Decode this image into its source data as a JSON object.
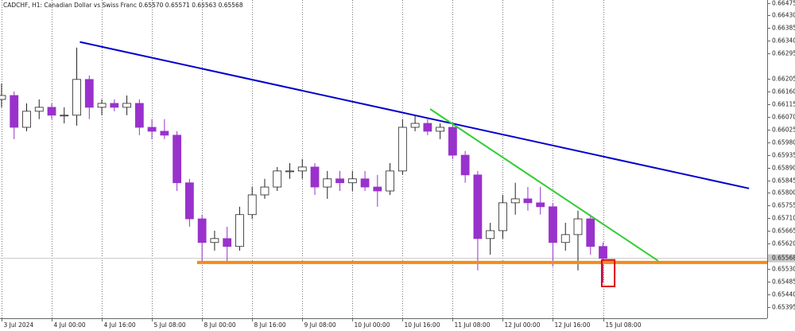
{
  "chart_data": {
    "type": "candlestick",
    "title": "CADCHF, H1:  Canadian Dollar vs Swiss Franc  0.65570 0.65571 0.65563 0.65568",
    "x": [
      0,
      4,
      8,
      12,
      16,
      20,
      24,
      28,
      32,
      36,
      40,
      44,
      48,
      52,
      56,
      60,
      64,
      68,
      72,
      76,
      80,
      84,
      88,
      92,
      96,
      100,
      104,
      108,
      112,
      116,
      120,
      124,
      128,
      132,
      136,
      140,
      144,
      148,
      152,
      156,
      160,
      164,
      168,
      172,
      176,
      180,
      184,
      188,
      192
    ],
    "open": [
      0.66132,
      0.66146,
      0.66033,
      0.6609,
      0.66104,
      0.66076,
      0.66076,
      0.66203,
      0.66104,
      0.66118,
      0.66104,
      0.66118,
      0.66033,
      0.66019,
      0.66005,
      0.65836,
      0.65708,
      0.65624,
      0.65638,
      0.6561,
      0.65723,
      0.65793,
      0.65821,
      0.65878,
      0.65878,
      0.65892,
      0.65821,
      0.6585,
      0.65836,
      0.6585,
      0.65821,
      0.65807,
      0.65878,
      0.66033,
      0.66047,
      0.66019,
      0.66033,
      0.65934,
      0.65864,
      0.65638,
      0.65666,
      0.65765,
      0.65779,
      0.65765,
      0.65751,
      0.65624,
      0.65652,
      0.65708,
      0.6561
    ],
    "high": [
      0.66189,
      0.6616,
      0.66118,
      0.66132,
      0.66118,
      0.66104,
      0.66316,
      0.66217,
      0.66132,
      0.66132,
      0.66146,
      0.66132,
      0.66062,
      0.66062,
      0.66019,
      0.6585,
      0.65723,
      0.65666,
      0.6568,
      0.65751,
      0.65821,
      0.6585,
      0.65892,
      0.65906,
      0.6592,
      0.65906,
      0.65878,
      0.65878,
      0.65878,
      0.65878,
      0.65864,
      0.65906,
      0.66062,
      0.66076,
      0.66062,
      0.66047,
      0.66047,
      0.65949,
      0.65878,
      0.65694,
      0.65793,
      0.65836,
      0.65821,
      0.65821,
      0.65765,
      0.65694,
      0.65737,
      0.65723,
      0.65624
    ],
    "low": [
      0.66104,
      0.65991,
      0.66019,
      0.66062,
      0.66062,
      0.66047,
      0.66039,
      0.66062,
      0.66076,
      0.6609,
      0.66076,
      0.66005,
      0.65991,
      0.65991,
      0.65807,
      0.6568,
      0.65553,
      0.65595,
      0.65553,
      0.65595,
      0.65708,
      0.65779,
      0.65807,
      0.6585,
      0.6585,
      0.65793,
      0.65779,
      0.65807,
      0.65807,
      0.65807,
      0.65751,
      0.65793,
      0.65864,
      0.66019,
      0.66005,
      0.65991,
      0.6592,
      0.65836,
      0.65525,
      0.65581,
      0.65638,
      0.65723,
      0.65737,
      0.65723,
      0.65539,
      0.65595,
      0.65525,
      0.65581,
      0.65482
    ],
    "close": [
      0.66146,
      0.66033,
      0.6609,
      0.66104,
      0.66076,
      0.66076,
      0.66203,
      0.66104,
      0.66118,
      0.66104,
      0.66118,
      0.66033,
      0.66019,
      0.66005,
      0.65836,
      0.65708,
      0.65624,
      0.65638,
      0.6561,
      0.65723,
      0.65793,
      0.65821,
      0.65878,
      0.65878,
      0.65892,
      0.65821,
      0.6585,
      0.65836,
      0.6585,
      0.65821,
      0.65807,
      0.65878,
      0.66033,
      0.66047,
      0.66019,
      0.66033,
      0.65934,
      0.65864,
      0.65638,
      0.65666,
      0.65765,
      0.65779,
      0.65765,
      0.65751,
      0.65624,
      0.65652,
      0.65708,
      0.6561,
      0.65568
    ],
    "up_color": "#ffffff",
    "down_color": "#9932cc",
    "edge_color": "#222222",
    "xlim": [
      -0.5,
      244.4
    ],
    "xticks": [
      {
        "value": 0,
        "label": "3 Jul 2024"
      },
      {
        "value": 16,
        "label": "4 Jul 00:00"
      },
      {
        "value": 32,
        "label": "4 Jul 16:00"
      },
      {
        "value": 48,
        "label": "5 Jul 08:00"
      },
      {
        "value": 64,
        "label": "8 Jul 00:00"
      },
      {
        "value": 80,
        "label": "8 Jul 16:00"
      },
      {
        "value": 96,
        "label": "9 Jul 08:00"
      },
      {
        "value": 112,
        "label": "10 Jul 00:00"
      },
      {
        "value": 128,
        "label": "10 Jul 16:00"
      },
      {
        "value": 144,
        "label": "11 Jul 08:00"
      },
      {
        "value": 160,
        "label": "12 Jul 00:00"
      },
      {
        "value": 176,
        "label": "12 Jul 16:00"
      },
      {
        "value": 192,
        "label": "15 Jul 08:00"
      }
    ],
    "ylim": [
      0.65355,
      0.66485
    ],
    "yticks": [
      0.66475,
      {
        "value": 0.6643,
        "label": "0.66430"
      },
      0.66385,
      {
        "value": 0.6634,
        "label": "0.66340"
      },
      0.66295,
      0.66205,
      {
        "value": 0.6616,
        "label": "0.66160"
      },
      0.66115,
      {
        "value": 0.6607,
        "label": "0.66070"
      },
      0.66025,
      {
        "value": 0.6598,
        "label": "0.65980"
      },
      0.65935,
      {
        "value": 0.6589,
        "label": "0.65890"
      },
      0.65845,
      {
        "value": 0.658,
        "label": "0.65800"
      },
      0.65755,
      {
        "value": 0.6571,
        "label": "0.65710"
      },
      0.65665,
      {
        "value": 0.6562,
        "label": "0.65620"
      },
      {
        "value": 0.6553,
        "label": "0.65530"
      },
      0.65485,
      {
        "value": 0.6544,
        "label": "0.65440"
      },
      0.65395
    ],
    "price_label": 0.65568,
    "lines": [
      {
        "color": "#0000cc",
        "x": [
          25,
          238.6
        ],
        "y": [
          0.66336,
          0.65816
        ]
      },
      {
        "color": "#33cc33",
        "x": [
          136.8,
          209.6
        ],
        "y": [
          0.66098,
          0.65559
        ]
      },
      {
        "color": "#f08c1e",
        "x": [
          62.4,
          244.4
        ],
        "y": [
          0.65553,
          0.65553
        ]
      }
    ],
    "box": {
      "color": "#e00000",
      "x": [
        191.6,
        195.7
      ],
      "y": [
        0.65562,
        0.65468
      ]
    }
  }
}
